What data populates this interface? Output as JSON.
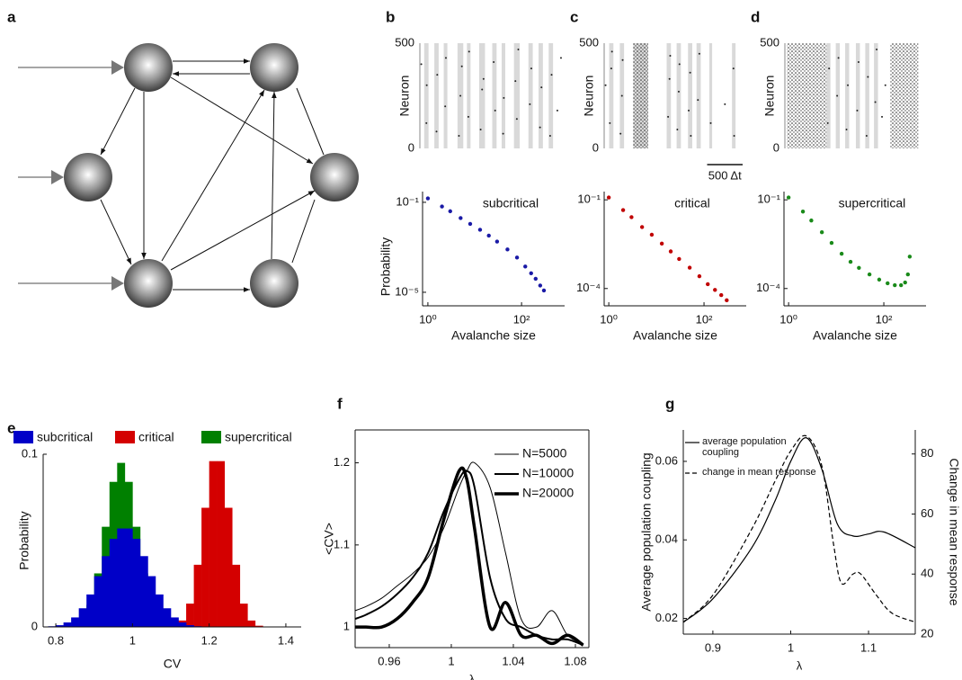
{
  "diagram": {
    "label": "a"
  },
  "chart_data": [
    {
      "type": "raster",
      "label": "b",
      "ylabel": "Neuron",
      "xlim": [
        0,
        2000
      ],
      "ylim": [
        0,
        500
      ],
      "yticks": [
        0,
        500
      ],
      "color": "#222222",
      "band_color": "#d9d9d9",
      "bands": [
        [
          60,
          120
        ],
        [
          200,
          260
        ],
        [
          330,
          380
        ],
        [
          520,
          600
        ],
        [
          650,
          700
        ],
        [
          820,
          900
        ],
        [
          1000,
          1060
        ],
        [
          1130,
          1180
        ],
        [
          1300,
          1380
        ],
        [
          1500,
          1560
        ],
        [
          1640,
          1700
        ],
        [
          1780,
          1840
        ]
      ],
      "bursts": [],
      "x": [
        20,
        90,
        95,
        230,
        240,
        350,
        360,
        540,
        560,
        580,
        670,
        680,
        840,
        860,
        880,
        1020,
        1040,
        1150,
        1160,
        1320,
        1340,
        1360,
        1520,
        1540,
        1660,
        1680,
        1800,
        1820,
        1900,
        1950
      ],
      "values": [
        400,
        120,
        300,
        80,
        350,
        200,
        430,
        60,
        250,
        390,
        150,
        460,
        90,
        280,
        330,
        410,
        180,
        70,
        240,
        320,
        140,
        470,
        210,
        380,
        100,
        290,
        60,
        350,
        180,
        430
      ]
    },
    {
      "type": "scatter",
      "annotation": "subcritical",
      "ylabel": "Probability",
      "xlabel": "Avalanche size",
      "log_x": true,
      "log_y": true,
      "color": "#1a1aa6",
      "xlim": [
        0.77,
        830
      ],
      "ylim": [
        2.5e-06,
        0.3
      ],
      "xticks": [
        {
          "value": 1,
          "label": "10⁰"
        },
        {
          "value": 100,
          "label": "10²"
        }
      ],
      "yticks": [
        {
          "value": 0.1,
          "label": "10⁻¹"
        },
        {
          "value": 1e-05,
          "label": "10⁻⁵"
        }
      ],
      "x": [
        1,
        2,
        3,
        5,
        8,
        13,
        20,
        30,
        50,
        80,
        120,
        160,
        200,
        250,
        300
      ],
      "values": [
        0.15,
        0.065,
        0.04,
        0.02,
        0.011,
        0.006,
        0.0033,
        0.0018,
        0.0008,
        0.00035,
        0.00014,
        7e-05,
        4e-05,
        2e-05,
        1.2e-05
      ]
    },
    {
      "type": "raster",
      "label": "c",
      "ylabel": "Neuron",
      "xlim": [
        0,
        2000
      ],
      "ylim": [
        0,
        500
      ],
      "yticks": [
        0,
        500
      ],
      "color": "#222222",
      "band_color": "#d9d9d9",
      "scalebar": {
        "value": 500,
        "label": "500 Δt"
      },
      "bands": [
        [
          70,
          130
        ],
        [
          220,
          280
        ],
        [
          410,
          620
        ],
        [
          880,
          940
        ],
        [
          1020,
          1080
        ],
        [
          1180,
          1240
        ],
        [
          1300,
          1360
        ],
        [
          1480,
          1520
        ],
        [
          1800,
          1850
        ]
      ],
      "bursts": [
        [
          410,
          620
        ]
      ],
      "x": [
        20,
        80,
        100,
        110,
        230,
        250,
        260,
        900,
        920,
        930,
        1030,
        1050,
        1060,
        1190,
        1210,
        1220,
        1320,
        1340,
        1500,
        1820,
        1830,
        1700
      ],
      "values": [
        300,
        120,
        380,
        460,
        70,
        250,
        420,
        150,
        330,
        440,
        90,
        270,
        400,
        180,
        360,
        60,
        230,
        450,
        120,
        380,
        60,
        210
      ]
    },
    {
      "type": "scatter",
      "annotation": "critical",
      "xlabel": "Avalanche size",
      "log_x": true,
      "log_y": true,
      "color": "#c00000",
      "xlim": [
        0.8,
        770
      ],
      "ylim": [
        2.6e-05,
        0.19
      ],
      "xticks": [
        {
          "value": 1,
          "label": "10⁰"
        },
        {
          "value": 100,
          "label": "10²"
        }
      ],
      "yticks": [
        {
          "value": 0.1,
          "label": "10⁻¹"
        },
        {
          "value": 0.0001,
          "label": "10⁻⁴"
        }
      ],
      "x": [
        1,
        2,
        3,
        5,
        8,
        13,
        20,
        30,
        50,
        80,
        120,
        170,
        230,
        300
      ],
      "values": [
        0.12,
        0.045,
        0.026,
        0.012,
        0.0066,
        0.0033,
        0.0018,
        0.001,
        0.00051,
        0.00026,
        0.00014,
        9e-05,
        6e-05,
        4e-05
      ]
    },
    {
      "type": "raster",
      "label": "d",
      "ylabel": "Neuron",
      "xlim": [
        0,
        2000
      ],
      "ylim": [
        0,
        500
      ],
      "yticks": [
        0,
        500
      ],
      "color": "#222222",
      "band_color": "#d9d9d9",
      "bands": [
        [
          620,
          680
        ],
        [
          760,
          820
        ],
        [
          900,
          960
        ],
        [
          1060,
          1120
        ],
        [
          1200,
          1260
        ],
        [
          1330,
          1390
        ]
      ],
      "bursts": [
        [
          30,
          620
        ],
        [
          1570,
          1990
        ]
      ],
      "x": [
        640,
        660,
        780,
        800,
        920,
        940,
        1080,
        1100,
        1220,
        1240,
        1350,
        1370,
        1450,
        1500
      ],
      "values": [
        120,
        380,
        250,
        430,
        90,
        300,
        180,
        410,
        60,
        340,
        220,
        470,
        150,
        300
      ]
    },
    {
      "type": "scatter",
      "annotation": "supercritical",
      "xlabel": "Avalanche size",
      "log_x": true,
      "log_y": true,
      "color": "#1a8a1a",
      "xlim": [
        0.8,
        770
      ],
      "ylim": [
        2.6e-05,
        0.19
      ],
      "xticks": [
        {
          "value": 1,
          "label": "10⁰"
        },
        {
          "value": 100,
          "label": "10²"
        }
      ],
      "yticks": [
        {
          "value": 0.1,
          "label": "10⁻¹"
        },
        {
          "value": 0.0001,
          "label": "10⁻⁴"
        }
      ],
      "x": [
        1,
        2,
        3,
        5,
        8,
        13,
        20,
        30,
        50,
        80,
        120,
        170,
        230,
        280,
        320,
        350
      ],
      "values": [
        0.12,
        0.04,
        0.02,
        0.008,
        0.0035,
        0.0015,
        0.0008,
        0.0005,
        0.0003,
        0.0002,
        0.00015,
        0.00013,
        0.00013,
        0.00016,
        0.0003,
        0.0012
      ]
    },
    {
      "type": "histogram",
      "label": "e",
      "xlabel": "CV",
      "ylabel": "Probability",
      "xlim": [
        0.767,
        1.44
      ],
      "ylim": [
        0,
        0.1
      ],
      "xticks": [
        0.8,
        1,
        1.2,
        1.4
      ],
      "yticks": [
        0,
        0.1
      ],
      "bins": [
        0.78,
        0.8,
        0.82,
        0.84,
        0.86,
        0.88,
        0.9,
        0.92,
        0.94,
        0.96,
        0.98,
        1,
        1.02,
        1.04,
        1.06,
        1.08,
        1.1,
        1.12,
        1.14,
        1.16,
        1.18,
        1.2,
        1.22,
        1.24,
        1.26,
        1.28,
        1.3,
        1.32,
        1.34,
        1.36
      ],
      "series": [
        {
          "name": "subcritical",
          "color": "#0000c8",
          "values": [
            0.0004,
            0.001,
            0.0026,
            0.0055,
            0.0108,
            0.0188,
            0.0294,
            0.041,
            0.051,
            0.057,
            0.057,
            0.051,
            0.041,
            0.0294,
            0.0188,
            0.0108,
            0.0055,
            0.0026,
            0.001,
            0.0004,
            0,
            0,
            0,
            0,
            0,
            0,
            0,
            0,
            0
          ]
        },
        {
          "name": "critical",
          "color": "#d40000",
          "values": [
            0,
            0,
            0,
            0,
            0,
            0,
            0,
            0,
            0,
            0,
            0,
            0,
            0,
            0,
            0.0001,
            0.0001,
            0.0007,
            0.0037,
            0.0135,
            0.036,
            0.069,
            0.096,
            0.096,
            0.069,
            0.036,
            0.0135,
            0.0037,
            0.0007,
            0.0001
          ]
        },
        {
          "name": "supercritical",
          "color": "#008000",
          "values": [
            0,
            0,
            0,
            0.001,
            0.0042,
            0.0128,
            0.031,
            0.058,
            0.084,
            0.095,
            0.084,
            0.058,
            0.031,
            0.0128,
            0.0042,
            0.001,
            0,
            0,
            0,
            0,
            0,
            0,
            0,
            0,
            0,
            0,
            0,
            0,
            0
          ]
        }
      ]
    },
    {
      "type": "line",
      "label": "f",
      "xlabel": "λ",
      "ylabel": "<CV>",
      "xlim": [
        0.938,
        1.0887
      ],
      "ylim": [
        0.975,
        1.24
      ],
      "xticks": [
        0.96,
        1,
        1.04,
        1.08
      ],
      "yticks": [
        1,
        1.1,
        1.2
      ],
      "series": [
        {
          "name": "N=5000",
          "color": "#000000",
          "width": 1,
          "x": [
            0.938,
            0.945,
            0.955,
            0.965,
            0.975,
            0.985,
            0.995,
            1.005,
            1.01,
            1.015,
            1.025,
            1.035,
            1.045,
            1.055,
            1.065,
            1.075,
            1.085
          ],
          "values": [
            1.02,
            1.025,
            1.035,
            1.05,
            1.065,
            1.085,
            1.12,
            1.17,
            1.19,
            1.2,
            1.17,
            1.09,
            1.01,
            1,
            1.02,
            0.99,
            0.98
          ]
        },
        {
          "name": "N=10000",
          "color": "#000000",
          "width": 2,
          "x": [
            0.938,
            0.945,
            0.955,
            0.965,
            0.975,
            0.985,
            0.995,
            1.005,
            1.01,
            1.015,
            1.025,
            1.035,
            1.045,
            1.055,
            1.065,
            1.075,
            1.085
          ],
          "values": [
            1.01,
            1.015,
            1.025,
            1.04,
            1.06,
            1.09,
            1.14,
            1.18,
            1.19,
            1.17,
            1.06,
            1.01,
            1,
            0.99,
            0.985,
            0.985,
            0.978
          ]
        },
        {
          "name": "N=20000",
          "color": "#000000",
          "width": 3.5,
          "x": [
            0.938,
            0.945,
            0.955,
            0.965,
            0.975,
            0.985,
            0.995,
            1.005,
            1.01,
            1.015,
            1.025,
            1.035,
            1.045,
            1.055,
            1.065,
            1.075,
            1.085
          ],
          "values": [
            1,
            1,
            1,
            1.01,
            1.03,
            1.06,
            1.13,
            1.19,
            1.18,
            1.12,
            1,
            1.03,
            0.99,
            0.99,
            0.98,
            0.99,
            0.978
          ]
        }
      ]
    },
    {
      "type": "line",
      "label": "g",
      "xlabel": "λ",
      "ylabel": "Average population coupling",
      "y2label": "Change in mean response",
      "xlim": [
        0.862,
        1.16
      ],
      "ylim": [
        0.016,
        0.068
      ],
      "y2lim": [
        20,
        88
      ],
      "xticks": [
        0.9,
        1,
        1.1
      ],
      "yticks": [
        0.02,
        0.04,
        0.06
      ],
      "y2ticks": [
        20,
        40,
        60,
        80
      ],
      "series": [
        {
          "name": "average population coupling",
          "color": "#000000",
          "width": 1.2,
          "x": [
            0.862,
            0.9,
            0.95,
            0.98,
            1,
            1.02,
            1.04,
            1.06,
            1.08,
            1.1,
            1.12,
            1.16
          ],
          "values": [
            0.019,
            0.025,
            0.038,
            0.05,
            0.06,
            0.066,
            0.058,
            0.044,
            0.041,
            0.0415,
            0.042,
            0.038
          ]
        },
        {
          "name": "change in mean response",
          "color": "#000000",
          "width": 1.2,
          "dash": true,
          "axis": "y2",
          "x": [
            0.862,
            0.9,
            0.95,
            0.98,
            1,
            1.02,
            1.04,
            1.055,
            1.065,
            1.08,
            1.09,
            1.11,
            1.13,
            1.16
          ],
          "values": [
            24,
            33,
            55,
            71,
            81,
            86,
            76,
            50,
            37,
            40,
            40,
            33,
            27,
            24
          ]
        }
      ]
    }
  ]
}
